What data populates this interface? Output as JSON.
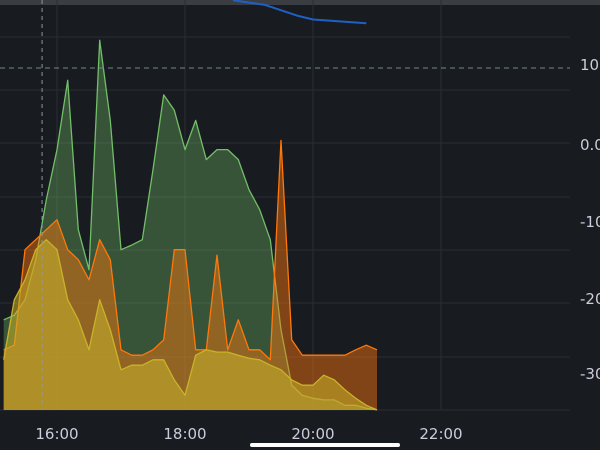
{
  "chart_data": {
    "type": "area",
    "title": "",
    "xlabel": "",
    "ylabel": "",
    "x_tick_labels": [
      "16:00",
      "18:00",
      "20:00",
      "22:00"
    ],
    "y_tick_labels": [
      "10.",
      "0.0",
      "-10",
      "-20",
      "-30"
    ],
    "ylim": [
      -34.5,
      18.8
    ],
    "xlim": [
      "15:00",
      "23:00"
    ],
    "grid": true,
    "threshold": 10,
    "crosshair_time": "15:46",
    "x": [
      "15:10",
      "15:20",
      "15:30",
      "15:40",
      "15:50",
      "16:00",
      "16:10",
      "16:20",
      "16:30",
      "16:40",
      "16:50",
      "17:00",
      "17:10",
      "17:20",
      "17:30",
      "17:40",
      "17:50",
      "18:00",
      "18:10",
      "18:20",
      "18:30",
      "18:40",
      "18:50",
      "19:00",
      "19:10",
      "19:20",
      "19:30",
      "19:40",
      "19:50",
      "20:00",
      "20:10",
      "20:20",
      "20:30",
      "20:40",
      "20:50",
      "21:00"
    ],
    "series": [
      {
        "color": "#73bf69",
        "values": [
          -22.7,
          -22.1,
          -20.1,
          -14.9,
          -7.1,
          -0.6,
          8.4,
          -11,
          -16.2,
          13.6,
          3.2,
          -13.6,
          -13,
          -12.3,
          -3.2,
          6.5,
          4.5,
          -0.6,
          3.2,
          -1.9,
          -0.6,
          -0.6,
          -1.9,
          -5.8,
          -8.4,
          -12.3,
          -24,
          -31.2,
          -32.5,
          -32.9,
          -33.1,
          -33.1,
          -33.8,
          -33.8,
          -34.2,
          -34.4
        ]
      },
      {
        "color": "#ff780a",
        "values": [
          -26.6,
          -26,
          -13.6,
          -12.3,
          -11,
          -9.7,
          -13.6,
          -14.9,
          -17.5,
          -12.3,
          -14.9,
          -26.6,
          -27.3,
          -27.3,
          -26.6,
          -25.3,
          -13.6,
          -13.6,
          -26.6,
          -26.6,
          -14.3,
          -26.6,
          -22.7,
          -26.6,
          -26.6,
          -27.9,
          0.6,
          -25.3,
          -27.3,
          -27.3,
          -27.3,
          -27.3,
          -27.3,
          -26.6,
          -26,
          -26.6
        ]
      },
      {
        "color": "#c9b32a",
        "values": [
          -27.9,
          -20.1,
          -17.5,
          -13.6,
          -12.3,
          -13.6,
          -20.1,
          -22.7,
          -26.6,
          -20.1,
          -24,
          -29.2,
          -28.6,
          -28.6,
          -27.9,
          -27.9,
          -30.5,
          -32.5,
          -27.3,
          -26.6,
          -26.9,
          -26.9,
          -27.3,
          -27.7,
          -27.9,
          -28.6,
          -29.2,
          -30.5,
          -31.2,
          -31.2,
          -29.9,
          -30.5,
          -31.8,
          -32.9,
          -33.8,
          -34.4
        ]
      },
      {
        "color": "#1f60c4",
        "x": [
          "18:45",
          "19:15",
          "19:45",
          "20:00",
          "20:30",
          "20:50"
        ],
        "values": [
          18.8,
          18.2,
          16.8,
          16.3,
          16.0,
          15.8
        ]
      }
    ]
  }
}
